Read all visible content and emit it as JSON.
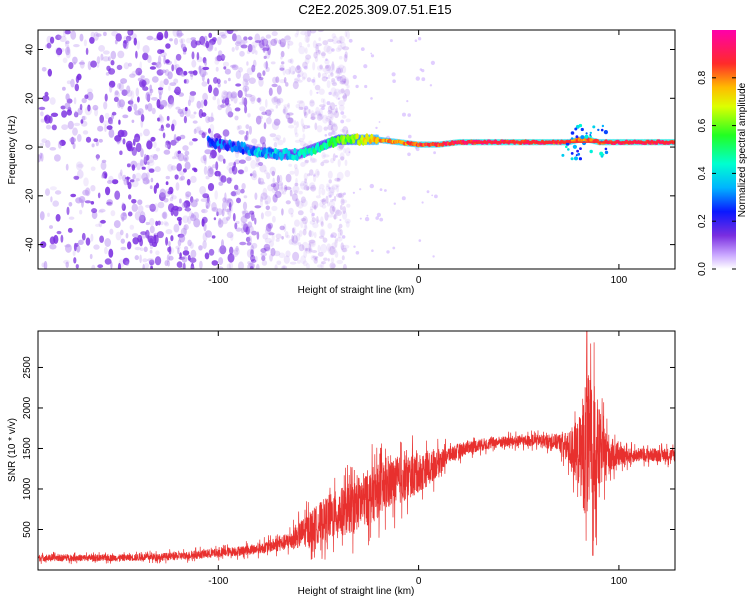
{
  "title": "C2E2.2025.309.07.51.E15",
  "colors": {
    "snr_line": "#e8302e",
    "scatter": "#7a2ee0",
    "ridge_core": "#ff2a2a"
  },
  "chart_data": [
    {
      "type": "heatmap",
      "name": "spectrogram",
      "xlabel": "Height of straight line (km)",
      "ylabel": "Frequency (Hz)",
      "xlim": [
        -190,
        128
      ],
      "ylim": [
        -50,
        48
      ],
      "xticks": [
        -100,
        0,
        100
      ],
      "xtick_labels": [
        "-100",
        "0",
        "100"
      ],
      "yticks": [
        -40,
        -20,
        0,
        20,
        40
      ],
      "ytick_labels": [
        "-40",
        "-20",
        "0",
        "20",
        "40"
      ],
      "colorbar": {
        "label": "Normalized spectral amplitude",
        "range": [
          0.0,
          1.0
        ],
        "ticks": [
          0.0,
          0.2,
          0.4,
          0.6,
          0.8
        ],
        "tick_labels": [
          "0.0",
          "0.2",
          "0.4",
          "0.6",
          "0.8"
        ],
        "colormap": "purple-blue-cyan-green-yellow-red-magenta"
      },
      "ridge": {
        "description": "narrow band near 0 Hz",
        "x": [
          -105,
          -90,
          -80,
          -70,
          -60,
          -50,
          -40,
          -30,
          -20,
          -10,
          0,
          10,
          20,
          40,
          60,
          75,
          80,
          85,
          90,
          100,
          110,
          128
        ],
        "freq": [
          2,
          0,
          -2,
          -3,
          -3,
          0,
          3,
          3,
          3,
          2,
          1,
          1,
          2,
          2,
          2,
          2,
          3,
          3,
          2,
          2,
          2,
          2
        ],
        "amplitude": [
          0.25,
          0.3,
          0.35,
          0.35,
          0.4,
          0.45,
          0.55,
          0.65,
          0.75,
          0.8,
          0.85,
          0.85,
          0.9,
          0.9,
          0.9,
          0.85,
          0.8,
          0.85,
          0.85,
          0.9,
          0.9,
          0.9
        ]
      },
      "noise_region": {
        "x_range": [
          -190,
          -60
        ],
        "freq_range": [
          -50,
          48
        ],
        "amplitude": 0.1
      }
    },
    {
      "type": "line",
      "name": "snr",
      "xlabel": "Height of straight line (km)",
      "ylabel": "SNR (10 * v/v)",
      "xlim": [
        -190,
        128
      ],
      "ylim": [
        0,
        2950
      ],
      "xticks": [
        -100,
        0,
        100
      ],
      "xtick_labels": [
        "-100",
        "0",
        "100"
      ],
      "yticks": [
        500,
        1000,
        1500,
        2000,
        2500
      ],
      "ytick_labels": [
        "500",
        "1000",
        "1500",
        "2000",
        "2500"
      ],
      "envelope": {
        "x": [
          -190,
          -150,
          -120,
          -100,
          -80,
          -65,
          -55,
          -45,
          -35,
          -25,
          -15,
          -5,
          5,
          15,
          25,
          40,
          60,
          70,
          75,
          80,
          83,
          85,
          88,
          92,
          100,
          110,
          128
        ],
        "mean": [
          150,
          150,
          170,
          210,
          260,
          350,
          500,
          650,
          750,
          900,
          1050,
          1150,
          1250,
          1420,
          1520,
          1580,
          1600,
          1580,
          1500,
          1450,
          1500,
          1500,
          1500,
          1450,
          1400,
          1420,
          1420
        ],
        "spread": [
          60,
          60,
          70,
          80,
          90,
          150,
          300,
          400,
          450,
          500,
          450,
          400,
          300,
          150,
          120,
          100,
          100,
          150,
          300,
          600,
          1200,
          1300,
          1100,
          500,
          150,
          120,
          120
        ]
      },
      "peak": {
        "x": 84,
        "y": 2950
      },
      "trough": {
        "x": 87,
        "y": 180
      }
    }
  ]
}
